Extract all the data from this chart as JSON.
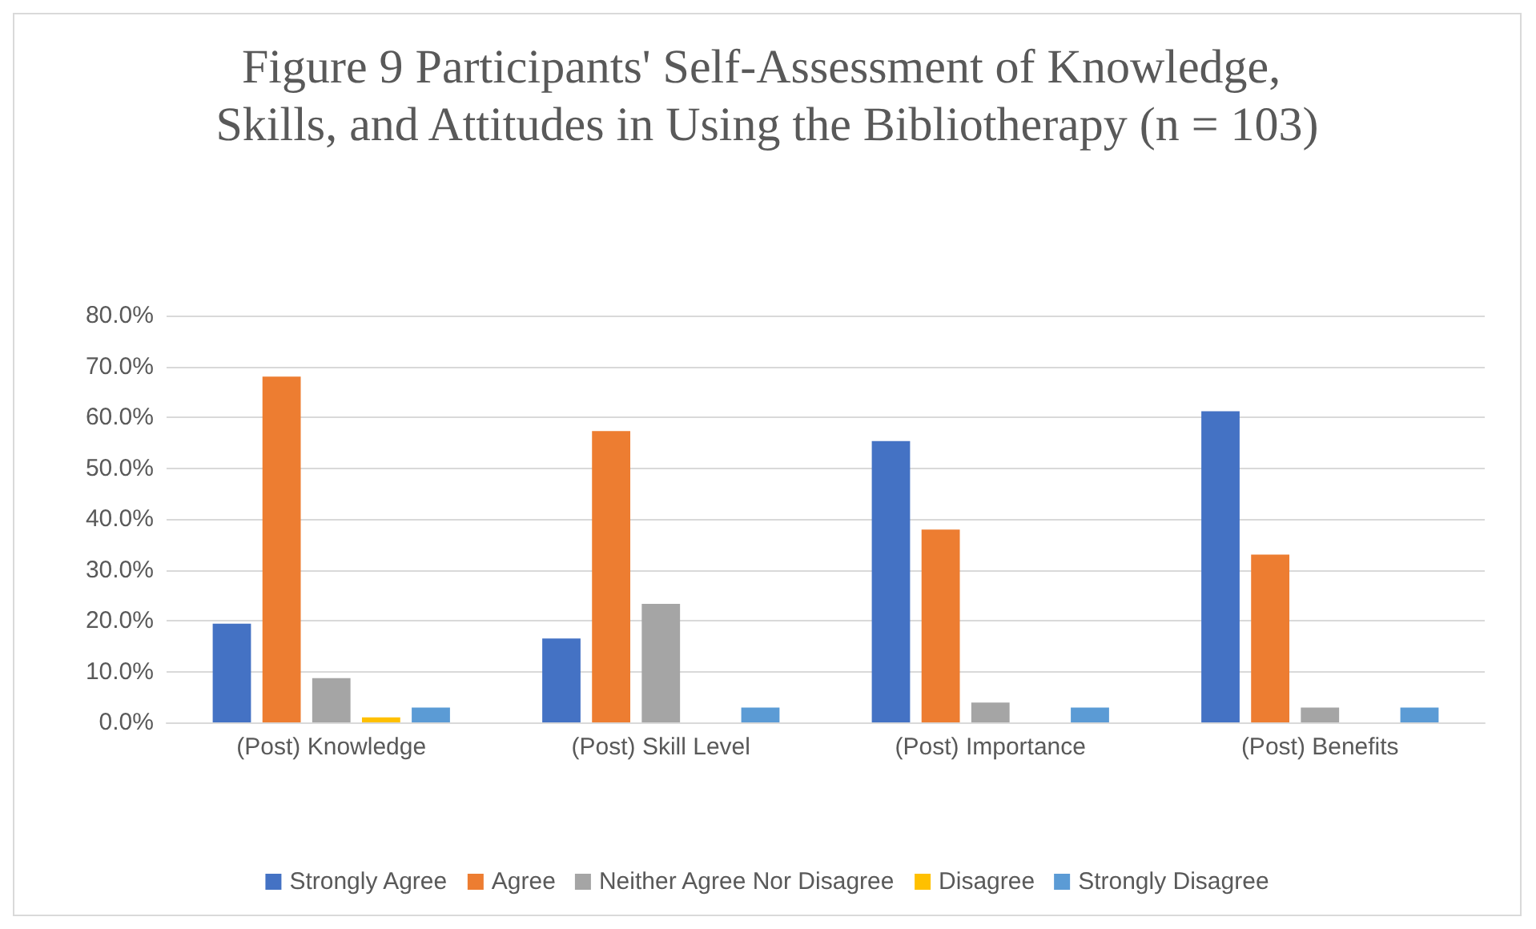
{
  "chart_data": {
    "type": "bar",
    "title": "Figure 9 Participants' Self-Assessment of Knowledge, Skills, and Attitudes in Using the Bibliotherapy (n = 103)",
    "categories": [
      "(Post) Knowledge",
      "(Post) Skill Level",
      "(Post) Importance",
      "(Post) Benefits"
    ],
    "series": [
      {
        "name": "Strongly Agree",
        "color": "#4472c4",
        "values": [
          19.4,
          16.5,
          55.3,
          61.2
        ]
      },
      {
        "name": "Agree",
        "color": "#ed7d31",
        "values": [
          68.0,
          57.3,
          37.9,
          33.0
        ]
      },
      {
        "name": "Neither Agree Nor Disagree",
        "color": "#a5a5a5",
        "values": [
          8.7,
          23.3,
          3.9,
          2.9
        ]
      },
      {
        "name": "Disagree",
        "color": "#ffc000",
        "values": [
          1.0,
          0,
          0,
          0
        ]
      },
      {
        "name": "Strongly Disagree",
        "color": "#5b9bd5",
        "values": [
          2.9,
          2.9,
          2.9,
          2.9
        ]
      }
    ],
    "ylim": [
      0,
      80
    ],
    "yticks": [
      {
        "value": 0,
        "label": "0.0%"
      },
      {
        "value": 10,
        "label": "10.0%"
      },
      {
        "value": 20,
        "label": "20.0%"
      },
      {
        "value": 30,
        "label": "30.0%"
      },
      {
        "value": 40,
        "label": "40.0%"
      },
      {
        "value": 50,
        "label": "50.0%"
      },
      {
        "value": 60,
        "label": "60.0%"
      },
      {
        "value": 70,
        "label": "70.0%"
      },
      {
        "value": 80,
        "label": "80.0%"
      }
    ],
    "grid": "y",
    "legend": "bottom"
  }
}
